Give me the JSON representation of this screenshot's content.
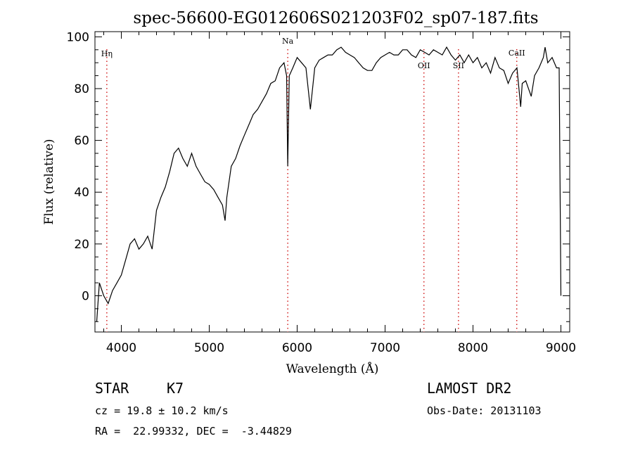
{
  "chart_data": {
    "type": "line",
    "title": "spec-56600-EG012606S021203F02_sp07-187.fits",
    "xlabel": "Wavelength (Å)",
    "ylabel": "Flux (relative)",
    "xlim": [
      3700,
      9100
    ],
    "ylim": [
      -14,
      102
    ],
    "xticks": [
      4000,
      5000,
      6000,
      7000,
      8000,
      9000
    ],
    "yticks": [
      0,
      20,
      40,
      60,
      80,
      100
    ],
    "grid": false,
    "line_color": "#000000",
    "marker_color": "#cc0000",
    "spectral_lines": [
      {
        "label": "Hη",
        "x": 3835
      },
      {
        "label": "Na",
        "x": 5893
      },
      {
        "label": "OII",
        "x": 7442
      },
      {
        "label": "SII",
        "x": 7835
      },
      {
        "label": "CaII",
        "x": 8498
      }
    ],
    "series": [
      {
        "x": [
          3720,
          3750,
          3800,
          3850,
          3900,
          3950,
          4000,
          4050,
          4100,
          4150,
          4200,
          4250,
          4300,
          4350,
          4400,
          4450,
          4500,
          4550,
          4600,
          4650,
          4700,
          4750,
          4800,
          4850,
          4900,
          4950,
          5000,
          5050,
          5100,
          5150,
          5180,
          5200,
          5250,
          5300,
          5350,
          5400,
          5450,
          5500,
          5550,
          5600,
          5650,
          5700,
          5750,
          5800,
          5850,
          5880,
          5893,
          5910,
          5950,
          6000,
          6050,
          6100,
          6150,
          6200,
          6250,
          6300,
          6350,
          6400,
          6450,
          6500,
          6550,
          6600,
          6650,
          6700,
          6750,
          6800,
          6850,
          6900,
          6950,
          7000,
          7050,
          7100,
          7150,
          7200,
          7250,
          7300,
          7350,
          7400,
          7450,
          7500,
          7550,
          7600,
          7650,
          7700,
          7750,
          7800,
          7850,
          7900,
          7950,
          8000,
          8050,
          8100,
          8150,
          8200,
          8250,
          8300,
          8350,
          8400,
          8450,
          8500,
          8542,
          8560,
          8600,
          8662,
          8700,
          8750,
          8800,
          8820,
          8850,
          8900,
          8950,
          8980,
          9000
        ],
        "y": [
          -10,
          5,
          0,
          -3,
          2,
          5,
          8,
          14,
          20,
          22,
          18,
          20,
          23,
          18,
          33,
          38,
          42,
          48,
          55,
          57,
          53,
          50,
          55,
          50,
          47,
          44,
          43,
          41,
          38,
          35,
          29,
          38,
          50,
          53,
          58,
          62,
          66,
          70,
          72,
          75,
          78,
          82,
          83,
          88,
          90,
          85,
          50,
          85,
          88,
          92,
          90,
          88,
          72,
          88,
          91,
          92,
          93,
          93,
          95,
          96,
          94,
          93,
          92,
          90,
          88,
          87,
          87,
          90,
          92,
          93,
          94,
          93,
          93,
          95,
          95,
          93,
          92,
          95,
          94,
          93,
          95,
          94,
          93,
          96,
          93,
          91,
          93,
          90,
          93,
          90,
          92,
          88,
          90,
          86,
          92,
          88,
          87,
          82,
          86,
          88,
          73,
          82,
          83,
          77,
          85,
          88,
          92,
          96,
          90,
          92,
          88,
          88,
          0
        ]
      }
    ]
  },
  "info": {
    "object_class": "STAR",
    "subclass": "K7",
    "survey": "LAMOST DR2",
    "redshift": "cz = 19.8 ± 10.2 km/s",
    "obs_date": "Obs-Date: 20131103",
    "coords": "RA =  22.99332, DEC =  -3.44829"
  }
}
